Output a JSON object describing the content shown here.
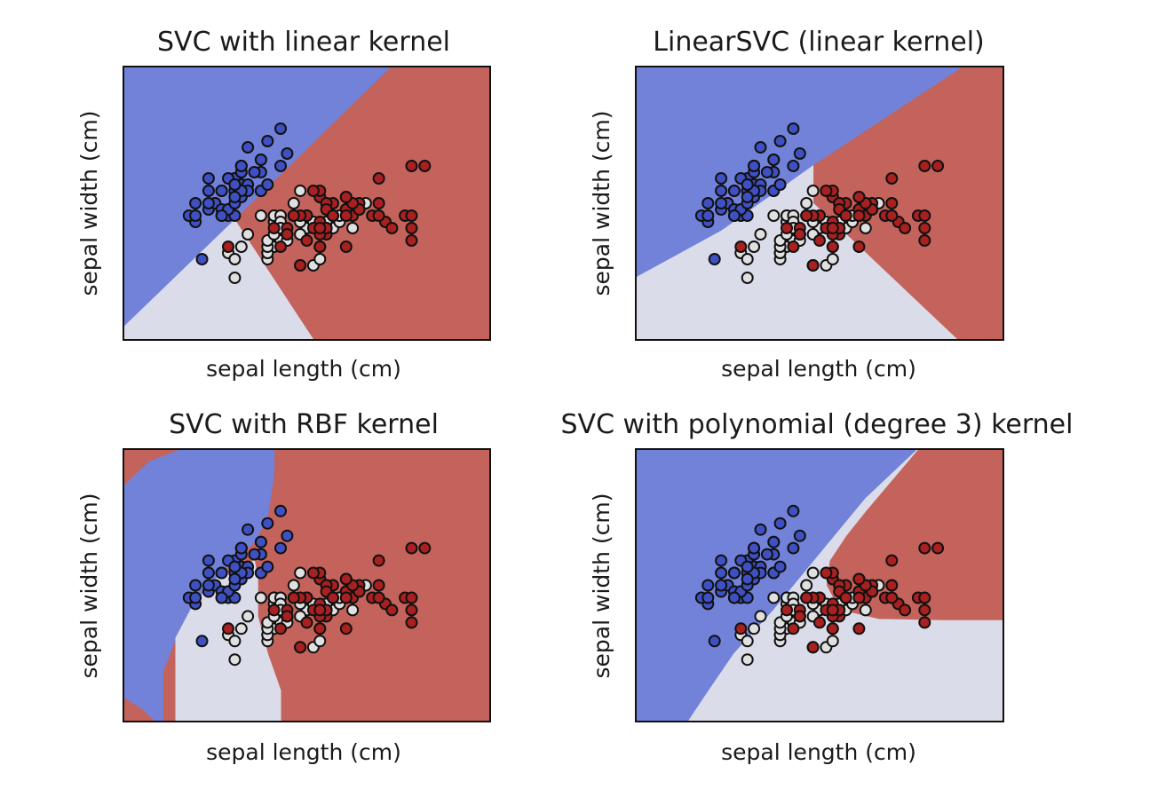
{
  "colors": {
    "region_setosa": "#7282d8",
    "region_versicolor": "#dadde9",
    "region_virginica": "#c4635b",
    "point_setosa": "#3f51c2",
    "point_versicolor": "#e0e0e0",
    "point_virginica": "#a8201f"
  },
  "chart_data": [
    {
      "type": "scatter",
      "title": "SVC with linear kernel",
      "xlabel": "sepal length (cm)",
      "ylabel": "sepal width (cm)",
      "xlim": [
        3.3,
        8.9
      ],
      "ylim": [
        1.0,
        5.4
      ],
      "xticks": [],
      "yticks": [],
      "decision_regions": [
        {
          "class": "setosa",
          "polygon": [
            [
              3.3,
              1.2
            ],
            [
              5.0,
              2.93
            ],
            [
              7.4,
              5.4
            ],
            [
              3.3,
              5.4
            ]
          ]
        },
        {
          "class": "virginica",
          "polygon": [
            [
              7.4,
              5.4
            ],
            [
              5.0,
              2.93
            ],
            [
              6.2,
              1.0
            ],
            [
              8.9,
              1.0
            ],
            [
              8.9,
              5.4
            ]
          ]
        },
        {
          "class": "versicolor",
          "polygon": [
            [
              3.3,
              1.0
            ],
            [
              6.2,
              1.0
            ],
            [
              5.0,
              2.93
            ],
            [
              3.3,
              1.2
            ]
          ]
        }
      ]
    },
    {
      "type": "scatter",
      "title": "LinearSVC (linear kernel)",
      "xlabel": "sepal length (cm)",
      "ylabel": "sepal width (cm)",
      "xlim": [
        3.3,
        8.9
      ],
      "ylim": [
        1.0,
        5.4
      ],
      "xticks": [],
      "yticks": [],
      "decision_regions": [
        {
          "class": "setosa",
          "polygon": [
            [
              3.3,
              2.0
            ],
            [
              4.6,
              2.75
            ],
            [
              8.3,
              5.4
            ],
            [
              3.3,
              5.4
            ]
          ]
        },
        {
          "class": "virginica",
          "polygon": [
            [
              8.3,
              5.4
            ],
            [
              6.0,
              3.8
            ],
            [
              6.0,
              3.2
            ],
            [
              8.2,
              1.0
            ],
            [
              8.9,
              1.0
            ],
            [
              8.9,
              5.4
            ]
          ]
        },
        {
          "class": "versicolor",
          "polygon": [
            [
              3.3,
              1.0
            ],
            [
              8.2,
              1.0
            ],
            [
              6.0,
              3.2
            ],
            [
              6.0,
              3.8
            ],
            [
              4.6,
              2.75
            ],
            [
              3.3,
              2.0
            ]
          ]
        }
      ]
    },
    {
      "type": "scatter",
      "title": "SVC with RBF kernel",
      "xlabel": "sepal length (cm)",
      "ylabel": "sepal width (cm)",
      "xlim": [
        3.3,
        8.9
      ],
      "ylim": [
        1.0,
        5.4
      ],
      "xticks": [],
      "yticks": [],
      "decision_regions": [
        {
          "class": "virginica",
          "polygon": [
            [
              3.3,
              1.0
            ],
            [
              8.9,
              1.0
            ],
            [
              8.9,
              5.4
            ],
            [
              3.3,
              5.4
            ]
          ]
        },
        {
          "class": "setosa",
          "polygon": [
            [
              3.3,
              4.8
            ],
            [
              3.7,
              5.2
            ],
            [
              4.2,
              5.4
            ],
            [
              5.6,
              5.4
            ],
            [
              5.6,
              5.0
            ],
            [
              5.5,
              4.3
            ],
            [
              5.3,
              3.9
            ],
            [
              5.0,
              3.6
            ],
            [
              4.7,
              3.3
            ],
            [
              4.35,
              2.85
            ],
            [
              4.1,
              2.35
            ],
            [
              3.9,
              1.8
            ],
            [
              3.9,
              1.3
            ],
            [
              3.9,
              1.0
            ],
            [
              3.8,
              1.0
            ],
            [
              3.6,
              1.2
            ],
            [
              3.3,
              1.4
            ]
          ]
        },
        {
          "class": "versicolor",
          "polygon": [
            [
              4.1,
              2.35
            ],
            [
              4.35,
              2.85
            ],
            [
              4.7,
              3.3
            ],
            [
              5.0,
              3.45
            ],
            [
              5.3,
              3.6
            ],
            [
              5.35,
              3.3
            ],
            [
              5.35,
              2.7
            ],
            [
              5.5,
              2.1
            ],
            [
              5.7,
              1.5
            ],
            [
              5.7,
              1.0
            ],
            [
              4.1,
              1.0
            ]
          ]
        }
      ]
    },
    {
      "type": "scatter",
      "title": "SVC with polynomial (degree 3) kernel",
      "xlabel": "sepal length (cm)",
      "ylabel": "sepal width (cm)",
      "xlim": [
        3.3,
        8.9
      ],
      "ylim": [
        1.0,
        5.4
      ],
      "xticks": [],
      "yticks": [],
      "decision_regions": [
        {
          "class": "setosa",
          "polygon": [
            [
              3.3,
              1.0
            ],
            [
              4.1,
              1.0
            ],
            [
              4.35,
              1.4
            ],
            [
              4.8,
              2.1
            ],
            [
              5.4,
              2.8
            ],
            [
              6.1,
              3.7
            ],
            [
              6.8,
              4.6
            ],
            [
              7.6,
              5.4
            ],
            [
              3.3,
              5.4
            ]
          ]
        },
        {
          "class": "virginica",
          "polygon": [
            [
              7.6,
              5.4
            ],
            [
              7.2,
              4.9
            ],
            [
              6.8,
              4.4
            ],
            [
              6.5,
              4.0
            ],
            [
              6.25,
              3.6
            ],
            [
              6.2,
              3.2
            ],
            [
              6.35,
              2.9
            ],
            [
              6.6,
              2.75
            ],
            [
              7.0,
              2.65
            ],
            [
              8.0,
              2.63
            ],
            [
              8.9,
              2.63
            ],
            [
              8.9,
              5.4
            ]
          ]
        },
        {
          "class": "versicolor",
          "polygon": [
            [
              4.1,
              1.0
            ],
            [
              8.9,
              1.0
            ],
            [
              8.9,
              2.63
            ],
            [
              8.0,
              2.63
            ],
            [
              7.0,
              2.65
            ],
            [
              6.6,
              2.75
            ],
            [
              6.35,
              2.9
            ],
            [
              6.2,
              3.2
            ],
            [
              6.25,
              3.6
            ],
            [
              6.5,
              4.0
            ],
            [
              6.8,
              4.4
            ],
            [
              7.2,
              4.9
            ],
            [
              7.6,
              5.4
            ],
            [
              6.8,
              4.6
            ],
            [
              6.1,
              3.7
            ],
            [
              5.4,
              2.8
            ],
            [
              4.8,
              2.1
            ],
            [
              4.35,
              1.4
            ]
          ]
        }
      ]
    }
  ],
  "points": {
    "setosa": [
      [
        5.1,
        3.5
      ],
      [
        4.9,
        3.0
      ],
      [
        4.7,
        3.2
      ],
      [
        4.6,
        3.1
      ],
      [
        5.0,
        3.6
      ],
      [
        5.4,
        3.9
      ],
      [
        4.6,
        3.4
      ],
      [
        5.0,
        3.4
      ],
      [
        4.4,
        2.9
      ],
      [
        4.9,
        3.1
      ],
      [
        5.4,
        3.7
      ],
      [
        4.8,
        3.4
      ],
      [
        4.8,
        3.0
      ],
      [
        4.3,
        3.0
      ],
      [
        5.8,
        4.0
      ],
      [
        5.7,
        4.4
      ],
      [
        5.4,
        3.9
      ],
      [
        5.1,
        3.5
      ],
      [
        5.7,
        3.8
      ],
      [
        5.1,
        3.8
      ],
      [
        5.4,
        3.4
      ],
      [
        5.1,
        3.7
      ],
      [
        4.6,
        3.6
      ],
      [
        5.1,
        3.3
      ],
      [
        4.8,
        3.4
      ],
      [
        5.0,
        3.0
      ],
      [
        5.0,
        3.4
      ],
      [
        5.2,
        3.5
      ],
      [
        5.2,
        3.4
      ],
      [
        4.7,
        3.2
      ],
      [
        4.8,
        3.1
      ],
      [
        5.4,
        3.4
      ],
      [
        5.2,
        4.1
      ],
      [
        5.5,
        4.2
      ],
      [
        4.9,
        3.1
      ],
      [
        5.0,
        3.2
      ],
      [
        5.5,
        3.5
      ],
      [
        4.9,
        3.6
      ],
      [
        4.4,
        3.0
      ],
      [
        5.1,
        3.4
      ],
      [
        5.0,
        3.5
      ],
      [
        4.5,
        2.3
      ],
      [
        4.4,
        3.2
      ],
      [
        5.0,
        3.5
      ],
      [
        5.1,
        3.8
      ],
      [
        4.8,
        3.0
      ],
      [
        5.1,
        3.8
      ],
      [
        4.6,
        3.2
      ],
      [
        5.3,
        3.7
      ],
      [
        5.0,
        3.3
      ]
    ],
    "versicolor": [
      [
        7.0,
        3.2
      ],
      [
        6.4,
        3.2
      ],
      [
        6.9,
        3.1
      ],
      [
        5.5,
        2.3
      ],
      [
        6.5,
        2.8
      ],
      [
        5.7,
        2.8
      ],
      [
        6.3,
        3.3
      ],
      [
        4.9,
        2.4
      ],
      [
        6.6,
        2.9
      ],
      [
        5.2,
        2.7
      ],
      [
        5.0,
        2.0
      ],
      [
        5.9,
        3.0
      ],
      [
        6.0,
        2.2
      ],
      [
        6.1,
        2.9
      ],
      [
        5.6,
        2.9
      ],
      [
        6.7,
        3.1
      ],
      [
        5.6,
        3.0
      ],
      [
        5.8,
        2.7
      ],
      [
        6.2,
        2.2
      ],
      [
        5.6,
        2.5
      ],
      [
        5.9,
        3.2
      ],
      [
        6.1,
        2.8
      ],
      [
        6.3,
        2.5
      ],
      [
        6.1,
        2.8
      ],
      [
        6.4,
        2.9
      ],
      [
        6.6,
        3.0
      ],
      [
        6.8,
        2.8
      ],
      [
        6.7,
        3.0
      ],
      [
        6.0,
        2.9
      ],
      [
        5.7,
        2.6
      ],
      [
        5.5,
        2.4
      ],
      [
        5.5,
        2.4
      ],
      [
        5.8,
        2.7
      ],
      [
        6.0,
        2.7
      ],
      [
        5.4,
        3.0
      ],
      [
        6.0,
        3.4
      ],
      [
        6.7,
        3.1
      ],
      [
        6.3,
        2.3
      ],
      [
        5.6,
        3.0
      ],
      [
        5.5,
        2.5
      ],
      [
        5.5,
        2.6
      ],
      [
        6.1,
        3.0
      ],
      [
        5.8,
        2.6
      ],
      [
        5.0,
        2.3
      ],
      [
        5.6,
        2.7
      ],
      [
        5.7,
        3.0
      ],
      [
        5.7,
        2.9
      ],
      [
        6.2,
        2.9
      ],
      [
        5.1,
        2.5
      ],
      [
        5.7,
        2.8
      ]
    ],
    "virginica": [
      [
        6.3,
        3.3
      ],
      [
        5.8,
        2.7
      ],
      [
        7.1,
        3.0
      ],
      [
        6.3,
        2.9
      ],
      [
        6.5,
        3.0
      ],
      [
        7.6,
        3.0
      ],
      [
        4.9,
        2.5
      ],
      [
        7.3,
        2.9
      ],
      [
        6.7,
        2.5
      ],
      [
        7.2,
        3.6
      ],
      [
        6.5,
        3.2
      ],
      [
        6.4,
        2.7
      ],
      [
        6.8,
        3.0
      ],
      [
        5.7,
        2.5
      ],
      [
        5.8,
        2.8
      ],
      [
        6.4,
        3.2
      ],
      [
        6.5,
        3.0
      ],
      [
        7.7,
        3.8
      ],
      [
        7.7,
        2.6
      ],
      [
        6.0,
        2.2
      ],
      [
        6.9,
        3.2
      ],
      [
        5.6,
        2.8
      ],
      [
        7.7,
        2.8
      ],
      [
        6.3,
        2.7
      ],
      [
        6.7,
        3.3
      ],
      [
        7.2,
        3.2
      ],
      [
        6.2,
        2.8
      ],
      [
        6.1,
        3.0
      ],
      [
        6.4,
        2.8
      ],
      [
        7.2,
        3.0
      ],
      [
        7.4,
        2.8
      ],
      [
        7.9,
        3.8
      ],
      [
        6.4,
        2.8
      ],
      [
        6.3,
        2.8
      ],
      [
        6.1,
        2.6
      ],
      [
        7.7,
        3.0
      ],
      [
        6.3,
        3.4
      ],
      [
        6.4,
        3.1
      ],
      [
        6.0,
        3.0
      ],
      [
        6.9,
        3.1
      ],
      [
        6.7,
        3.1
      ],
      [
        6.9,
        3.1
      ],
      [
        5.8,
        2.7
      ],
      [
        6.8,
        3.2
      ],
      [
        6.7,
        3.3
      ],
      [
        6.7,
        3.0
      ],
      [
        6.3,
        2.5
      ],
      [
        6.5,
        3.0
      ],
      [
        6.2,
        3.4
      ],
      [
        5.9,
        3.0
      ]
    ]
  }
}
